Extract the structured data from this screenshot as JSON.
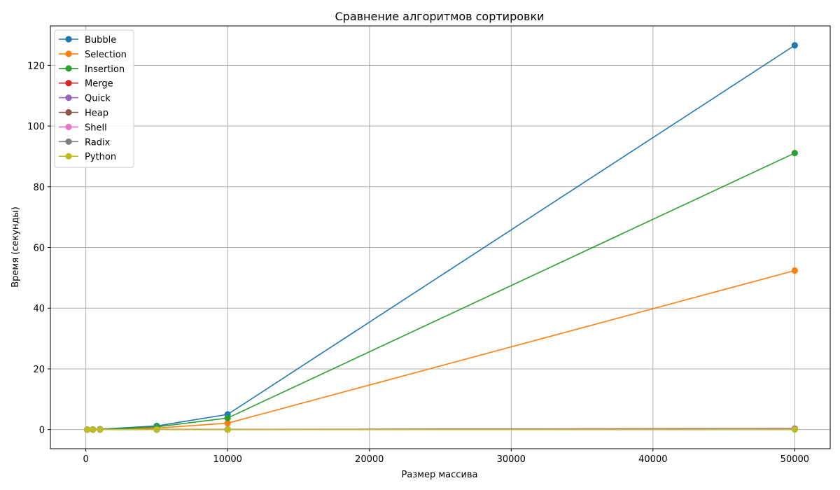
{
  "chart_data": {
    "type": "line",
    "title": "Сравнение алгоритмов сортировки",
    "xlabel": "Размер массива",
    "ylabel": "Время (секунды)",
    "x": [
      100,
      500,
      1000,
      5000,
      10000,
      50000
    ],
    "xlim": [
      -2500,
      52500
    ],
    "ylim": [
      -6.3,
      133
    ],
    "xticks": [
      0,
      10000,
      20000,
      30000,
      40000,
      50000
    ],
    "yticks": [
      0,
      20,
      40,
      60,
      80,
      100,
      120
    ],
    "grid": true,
    "legend_position": "upper-left",
    "series": [
      {
        "name": "Bubble",
        "color": "#1f77b4",
        "values": [
          0.001,
          0.03,
          0.12,
          1.2,
          5.0,
          126.6
        ]
      },
      {
        "name": "Selection",
        "color": "#ff7f0e",
        "values": [
          0.001,
          0.012,
          0.05,
          0.5,
          2.1,
          52.4
        ]
      },
      {
        "name": "Insertion",
        "color": "#2ca02c",
        "values": [
          0.001,
          0.02,
          0.08,
          0.9,
          3.8,
          91.1
        ]
      },
      {
        "name": "Merge",
        "color": "#d62728",
        "values": [
          0.0003,
          0.002,
          0.004,
          0.025,
          0.05,
          0.27
        ]
      },
      {
        "name": "Quick",
        "color": "#9467bd",
        "values": [
          0.0002,
          0.001,
          0.002,
          0.012,
          0.025,
          0.14
        ]
      },
      {
        "name": "Heap",
        "color": "#8c564b",
        "values": [
          0.0003,
          0.002,
          0.005,
          0.03,
          0.06,
          0.35
        ]
      },
      {
        "name": "Shell",
        "color": "#e377c2",
        "values": [
          0.0002,
          0.001,
          0.003,
          0.02,
          0.04,
          0.25
        ]
      },
      {
        "name": "Radix",
        "color": "#7f7f7f",
        "values": [
          0.0002,
          0.001,
          0.002,
          0.01,
          0.02,
          0.1
        ]
      },
      {
        "name": "Python",
        "color": "#bcbd22",
        "values": [
          1e-05,
          5e-05,
          0.0001,
          0.0005,
          0.001,
          0.006
        ]
      }
    ]
  }
}
